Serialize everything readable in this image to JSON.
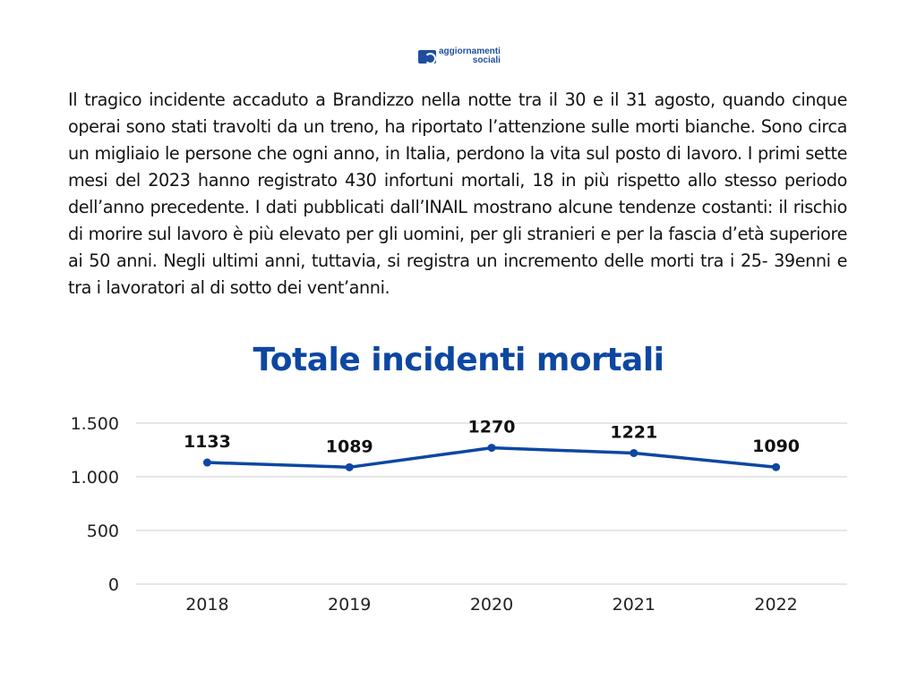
{
  "logo": {
    "line1": "aggiornamenti",
    "line2": "sociali",
    "icon": "aggiornamenti-sociali-logo-icon"
  },
  "paragraph": "Il tragico incidente accaduto a Brandizzo nella notte tra il 30 e il 31 agosto, quando cinque operai sono stati travolti da un treno, ha riportato l’attenzione sulle morti bianche. Sono circa un migliaio le persone che ogni anno, in Italia, perdono la vita sul posto di lavoro. I primi sette mesi del 2023 hanno registrato 430 infortuni mortali, 18 in più rispetto allo stesso periodo dell’anno precedente. I dati pubblicati dall’INAIL mostrano alcune tendenze costanti: il rischio di morire sul lavoro è più elevato per gli uomini, per gli stranieri e per la fascia d’età superiore ai 50 anni. Negli ultimi anni, tuttavia, si registra un incremento delle morti tra i 25- 39enni e tra i lavoratori al di sotto dei vent’anni.",
  "colors": {
    "accent": "#0d47a1",
    "line": "#0d47a1",
    "grid": "#cccccc"
  },
  "chart_data": {
    "type": "line",
    "title": "Totale incidenti mortali",
    "categories": [
      "2018",
      "2019",
      "2020",
      "2021",
      "2022"
    ],
    "values": [
      1133,
      1089,
      1270,
      1221,
      1090
    ],
    "data_labels": [
      "1133",
      "1089",
      "1270",
      "1221",
      "1090"
    ],
    "ylim": [
      0,
      1500
    ],
    "yticks": [
      0,
      500,
      1000,
      1500
    ],
    "ytick_labels": [
      "0",
      "500",
      "1.000",
      "1.500"
    ],
    "grid": true,
    "xlabel": "",
    "ylabel": ""
  }
}
